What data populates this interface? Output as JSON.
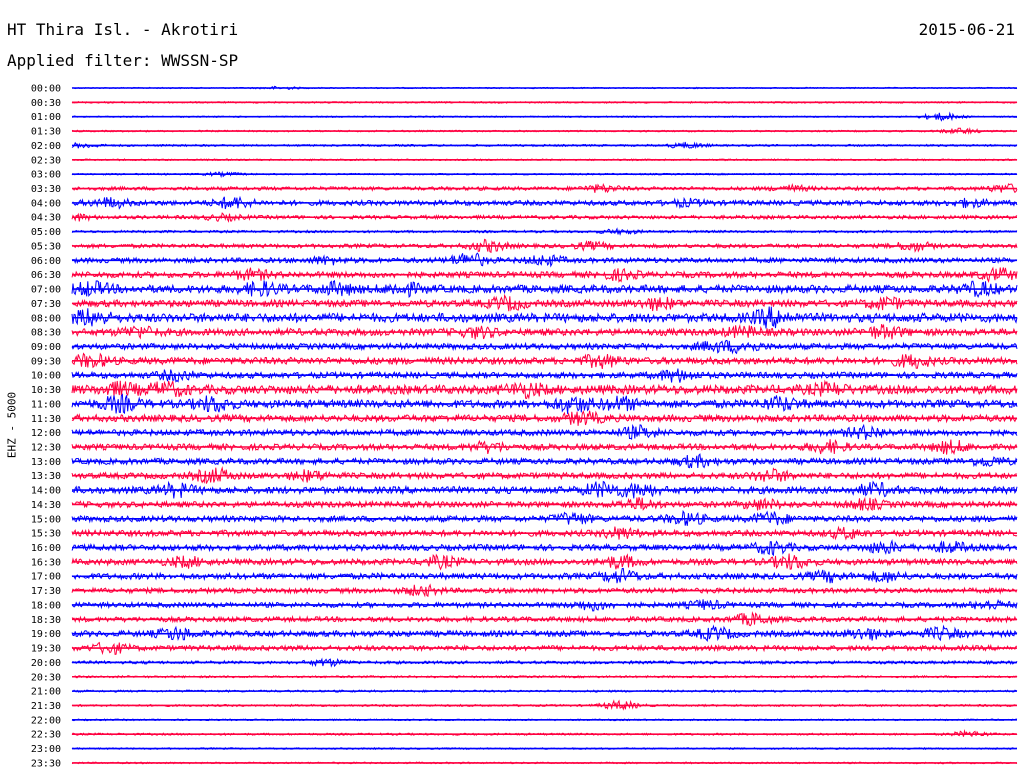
{
  "header": {
    "station": "HT Thira Isl. - Akrotiri",
    "date": "2015-06-21",
    "filter": "Applied filter: WWSSN-SP"
  },
  "chart_data": {
    "type": "line",
    "title": "HT Thira Isl. - Akrotiri",
    "ylabel": "EHZ - 5000",
    "colors": [
      "#0000ff",
      "#ff0040"
    ],
    "rows": [
      {
        "time": "00:00",
        "noise": 0.6,
        "events": [
          [
            0.22,
            1.2
          ]
        ]
      },
      {
        "time": "00:30",
        "noise": 0.8,
        "events": []
      },
      {
        "time": "01:00",
        "noise": 0.7,
        "events": [
          [
            0.92,
            3.5
          ]
        ]
      },
      {
        "time": "01:30",
        "noise": 0.8,
        "events": [
          [
            0.94,
            2.5
          ]
        ]
      },
      {
        "time": "02:00",
        "noise": 1.0,
        "events": [
          [
            0.01,
            2.0
          ],
          [
            0.65,
            2.5
          ]
        ]
      },
      {
        "time": "02:30",
        "noise": 0.8,
        "events": []
      },
      {
        "time": "03:00",
        "noise": 0.8,
        "events": [
          [
            0.16,
            1.5
          ]
        ]
      },
      {
        "time": "03:30",
        "noise": 1.8,
        "events": [
          [
            0.56,
            3.0
          ],
          [
            0.76,
            2.5
          ],
          [
            0.99,
            3.5
          ]
        ]
      },
      {
        "time": "04:00",
        "noise": 2.5,
        "events": [
          [
            0.04,
            4.0
          ],
          [
            0.17,
            5.0
          ],
          [
            0.65,
            2.5
          ],
          [
            0.95,
            3.0
          ]
        ]
      },
      {
        "time": "04:30",
        "noise": 1.8,
        "events": [
          [
            0.16,
            2.5
          ],
          [
            0.0,
            3.0
          ]
        ]
      },
      {
        "time": "05:00",
        "noise": 1.2,
        "events": [
          [
            0.58,
            2.0
          ]
        ]
      },
      {
        "time": "05:30",
        "noise": 2.0,
        "events": [
          [
            0.44,
            5.0
          ],
          [
            0.55,
            3.0
          ],
          [
            0.89,
            4.0
          ]
        ]
      },
      {
        "time": "06:00",
        "noise": 2.5,
        "events": [
          [
            0.42,
            6.0
          ],
          [
            0.5,
            4.0
          ],
          [
            0.27,
            3.0
          ]
        ]
      },
      {
        "time": "06:30",
        "noise": 3.0,
        "events": [
          [
            0.19,
            4.0
          ],
          [
            0.58,
            4.0
          ],
          [
            0.98,
            5.0
          ]
        ]
      },
      {
        "time": "07:00",
        "noise": 4.0,
        "events": [
          [
            0.02,
            5.0
          ],
          [
            0.2,
            5.0
          ],
          [
            0.28,
            4.5
          ],
          [
            0.35,
            4.5
          ],
          [
            0.96,
            5.0
          ]
        ]
      },
      {
        "time": "07:30",
        "noise": 3.5,
        "events": [
          [
            0.46,
            5.0
          ],
          [
            0.62,
            4.5
          ],
          [
            0.86,
            4.5
          ]
        ]
      },
      {
        "time": "08:00",
        "noise": 4.5,
        "events": [
          [
            0.02,
            6.0
          ],
          [
            0.74,
            7.0
          ]
        ]
      },
      {
        "time": "08:30",
        "noise": 3.5,
        "events": [
          [
            0.07,
            4.0
          ],
          [
            0.43,
            4.0
          ],
          [
            0.71,
            4.0
          ],
          [
            0.86,
            5.0
          ]
        ]
      },
      {
        "time": "09:00",
        "noise": 3.0,
        "events": [
          [
            0.68,
            3.5
          ],
          [
            0.71,
            4.0
          ]
        ]
      },
      {
        "time": "09:30",
        "noise": 3.5,
        "events": [
          [
            0.02,
            5.0
          ],
          [
            0.56,
            5.0
          ],
          [
            0.89,
            5.0
          ]
        ]
      },
      {
        "time": "10:00",
        "noise": 3.0,
        "events": [
          [
            0.11,
            4.0
          ],
          [
            0.64,
            5.0
          ]
        ]
      },
      {
        "time": "10:30",
        "noise": 4.5,
        "events": [
          [
            0.05,
            4.5
          ],
          [
            0.1,
            5.0
          ],
          [
            0.48,
            5.0
          ],
          [
            0.8,
            4.0
          ]
        ]
      },
      {
        "time": "11:00",
        "noise": 4.0,
        "events": [
          [
            0.05,
            6.0
          ],
          [
            0.15,
            6.0
          ],
          [
            0.53,
            6.5
          ],
          [
            0.58,
            5.0
          ],
          [
            0.75,
            5.0
          ]
        ]
      },
      {
        "time": "11:30",
        "noise": 3.5,
        "events": [
          [
            0.54,
            5.0
          ]
        ]
      },
      {
        "time": "12:00",
        "noise": 3.0,
        "events": [
          [
            0.6,
            5.0
          ],
          [
            0.84,
            5.0
          ]
        ]
      },
      {
        "time": "12:30",
        "noise": 3.0,
        "events": [
          [
            0.44,
            4.0
          ],
          [
            0.8,
            5.0
          ],
          [
            0.93,
            5.0
          ]
        ]
      },
      {
        "time": "13:00",
        "noise": 3.0,
        "events": [
          [
            0.66,
            4.5
          ],
          [
            0.97,
            3.5
          ]
        ]
      },
      {
        "time": "13:30",
        "noise": 3.0,
        "events": [
          [
            0.15,
            6.0
          ],
          [
            0.25,
            4.0
          ],
          [
            0.74,
            5.0
          ]
        ]
      },
      {
        "time": "14:00",
        "noise": 3.5,
        "events": [
          [
            0.11,
            5.0
          ],
          [
            0.56,
            6.0
          ],
          [
            0.6,
            5.5
          ],
          [
            0.85,
            5.0
          ]
        ]
      },
      {
        "time": "14:30",
        "noise": 3.0,
        "events": [
          [
            0.6,
            4.5
          ],
          [
            0.73,
            4.0
          ],
          [
            0.84,
            4.0
          ]
        ]
      },
      {
        "time": "15:00",
        "noise": 3.0,
        "events": [
          [
            0.53,
            4.5
          ],
          [
            0.65,
            5.0
          ],
          [
            0.74,
            5.0
          ]
        ]
      },
      {
        "time": "15:30",
        "noise": 3.0,
        "events": [
          [
            0.58,
            4.5
          ],
          [
            0.82,
            4.0
          ]
        ]
      },
      {
        "time": "16:00",
        "noise": 3.0,
        "events": [
          [
            0.74,
            5.0
          ],
          [
            0.86,
            4.5
          ],
          [
            0.93,
            4.0
          ]
        ]
      },
      {
        "time": "16:30",
        "noise": 3.0,
        "events": [
          [
            0.12,
            4.0
          ],
          [
            0.39,
            4.5
          ],
          [
            0.58,
            5.0
          ],
          [
            0.76,
            6.0
          ]
        ]
      },
      {
        "time": "17:00",
        "noise": 3.0,
        "events": [
          [
            0.58,
            5.5
          ],
          [
            0.8,
            4.0
          ],
          [
            0.86,
            4.0
          ]
        ]
      },
      {
        "time": "17:30",
        "noise": 2.5,
        "events": [
          [
            0.37,
            4.0
          ]
        ]
      },
      {
        "time": "18:00",
        "noise": 2.5,
        "events": [
          [
            0.55,
            4.0
          ],
          [
            0.67,
            3.5
          ],
          [
            0.97,
            3.5
          ]
        ]
      },
      {
        "time": "18:30",
        "noise": 2.5,
        "events": [
          [
            0.72,
            5.0
          ]
        ]
      },
      {
        "time": "19:00",
        "noise": 3.0,
        "events": [
          [
            0.11,
            5.0
          ],
          [
            0.68,
            5.0
          ],
          [
            0.84,
            4.5
          ],
          [
            0.92,
            4.5
          ]
        ]
      },
      {
        "time": "19:30",
        "noise": 2.5,
        "events": [
          [
            0.04,
            4.5
          ]
        ]
      },
      {
        "time": "20:00",
        "noise": 1.5,
        "events": [
          [
            0.27,
            3.0
          ]
        ]
      },
      {
        "time": "20:30",
        "noise": 1.0,
        "events": []
      },
      {
        "time": "21:00",
        "noise": 1.0,
        "events": []
      },
      {
        "time": "21:30",
        "noise": 1.0,
        "events": [
          [
            0.58,
            4.0
          ]
        ]
      },
      {
        "time": "22:00",
        "noise": 0.8,
        "events": []
      },
      {
        "time": "22:30",
        "noise": 1.0,
        "events": [
          [
            0.95,
            2.5
          ]
        ]
      },
      {
        "time": "23:00",
        "noise": 0.8,
        "events": []
      },
      {
        "time": "23:30",
        "noise": 0.8,
        "events": []
      }
    ]
  }
}
